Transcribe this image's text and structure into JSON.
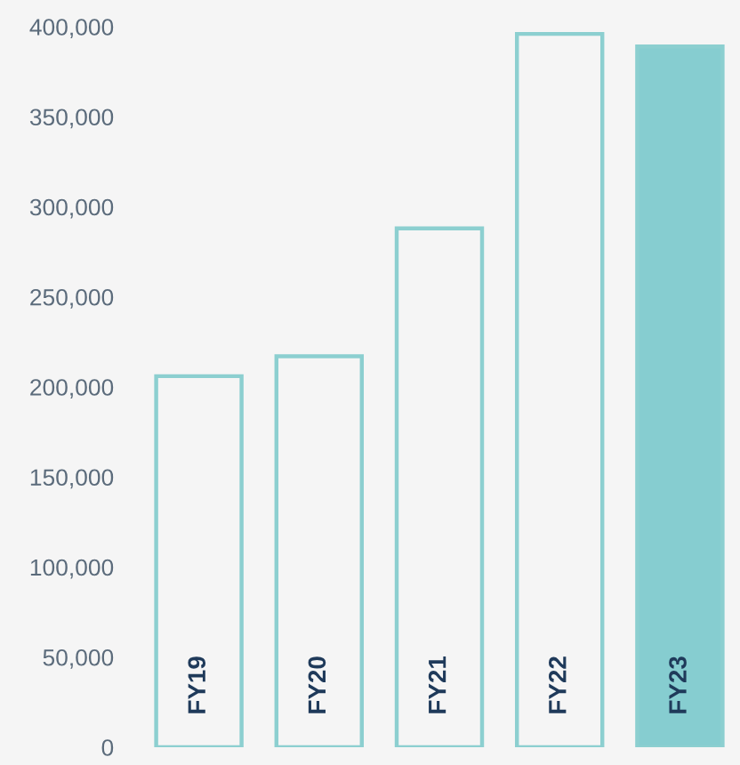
{
  "chart_data": {
    "type": "bar",
    "categories": [
      "FY19",
      "FY20",
      "FY21",
      "FY22",
      "FY23"
    ],
    "values": [
      206000,
      217000,
      288000,
      396000,
      389000
    ],
    "color": "#8ccfd0",
    "colors": [
      "#f5f5f5",
      "#f5f5f5",
      "#f5f5f5",
      "#f5f5f5",
      "#86cdd0"
    ],
    "ylim": [
      0,
      400000
    ],
    "yticks": [
      {
        "value": 0,
        "label": "0"
      },
      {
        "value": 50000,
        "label": "50,000"
      },
      {
        "value": 100000,
        "label": "100,000"
      },
      {
        "value": 150000,
        "label": "150,000"
      },
      {
        "value": 200000,
        "label": "200,000"
      },
      {
        "value": 250000,
        "label": "250,000"
      },
      {
        "value": 300000,
        "label": "300,000"
      },
      {
        "value": 350000,
        "label": "350,000"
      },
      {
        "value": 400000,
        "label": "400,000"
      }
    ],
    "grid": false
  }
}
